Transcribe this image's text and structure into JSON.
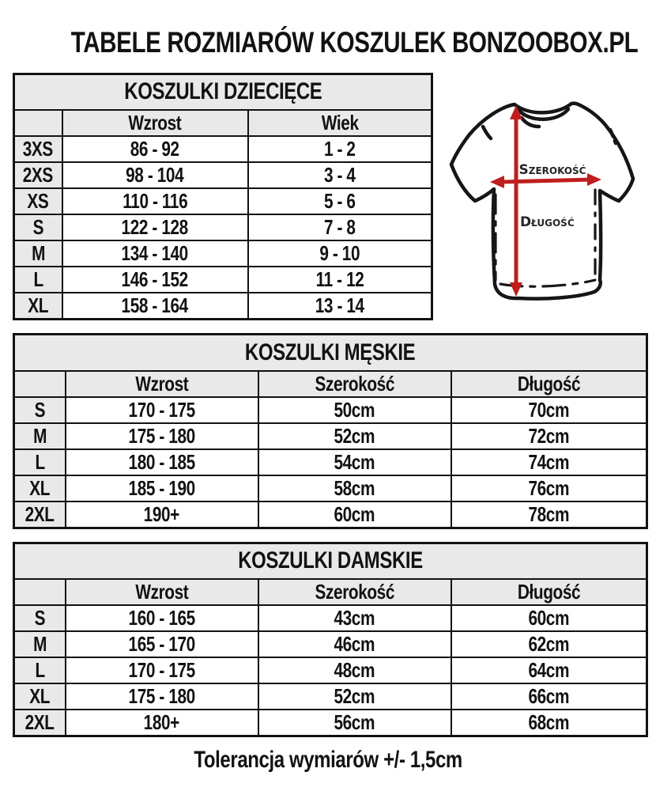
{
  "page": {
    "title": "TABELE ROZMIARÓW KOSZULEK BONZOOBOX.PL",
    "footer": "Tolerancja wymiarów +/- 1,5cm"
  },
  "colors": {
    "accent_red": "#bf1e1e",
    "header_gray": "#e9e9e9",
    "border_black": "#121212"
  },
  "illustration": {
    "name": "t-shirt measurement diagram",
    "width_label": "Szerokość",
    "length_label": "Długość"
  },
  "tables": {
    "children": {
      "title": "KOSZULKI DZIECIĘCE",
      "columns": [
        "",
        "Wzrost",
        "Wiek"
      ],
      "rows": [
        [
          "3XS",
          "86 - 92",
          "1 - 2"
        ],
        [
          "2XS",
          "98 - 104",
          "3 - 4"
        ],
        [
          "XS",
          "110 - 116",
          "5 - 6"
        ],
        [
          "S",
          "122 - 128",
          "7 - 8"
        ],
        [
          "M",
          "134 - 140",
          "9 - 10"
        ],
        [
          "L",
          "146 - 152",
          "11 - 12"
        ],
        [
          "XL",
          "158 - 164",
          "13 - 14"
        ]
      ]
    },
    "men": {
      "title": "KOSZULKI MĘSKIE",
      "columns": [
        "",
        "Wzrost",
        "Szerokość",
        "Długość"
      ],
      "rows": [
        [
          "S",
          "170 - 175",
          "50cm",
          "70cm"
        ],
        [
          "M",
          "175 - 180",
          "52cm",
          "72cm"
        ],
        [
          "L",
          "180 - 185",
          "54cm",
          "74cm"
        ],
        [
          "XL",
          "185 - 190",
          "58cm",
          "76cm"
        ],
        [
          "2XL",
          "190+",
          "60cm",
          "78cm"
        ]
      ]
    },
    "women": {
      "title": "KOSZULKI DAMSKIE",
      "columns": [
        "",
        "Wzrost",
        "Szerokość",
        "Długość"
      ],
      "rows": [
        [
          "S",
          "160 - 165",
          "43cm",
          "60cm"
        ],
        [
          "M",
          "165 - 170",
          "46cm",
          "62cm"
        ],
        [
          "L",
          "170 - 175",
          "48cm",
          "64cm"
        ],
        [
          "XL",
          "175 - 180",
          "52cm",
          "66cm"
        ],
        [
          "2XL",
          "180+",
          "56cm",
          "68cm"
        ]
      ]
    }
  }
}
